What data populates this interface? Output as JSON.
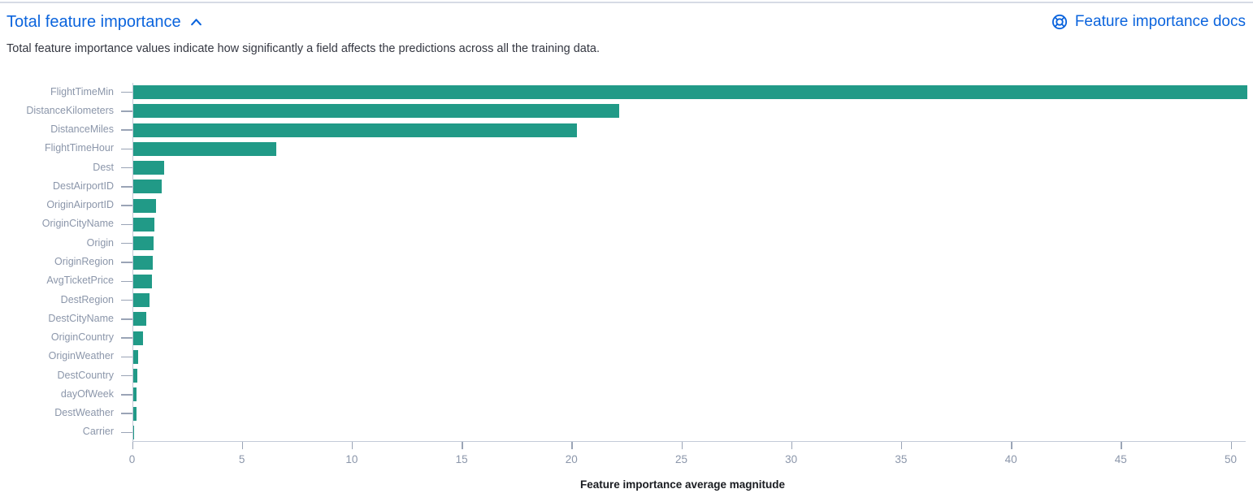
{
  "header": {
    "title": "Total feature importance",
    "collapse_icon": "chevron-up-icon",
    "docs_label": "Feature importance docs",
    "docs_icon": "help-icon"
  },
  "description": "Total feature importance values indicate how significantly a field affects the predictions across all the training data.",
  "colors": {
    "bar": "#219a87",
    "link": "#0b64dd",
    "body_text": "#343741",
    "axis_label": "#8b96aa",
    "axis_line": "#c3cad8",
    "divider": "#d6dbe5"
  },
  "chart_data": {
    "type": "bar",
    "orientation": "horizontal",
    "title": "",
    "xlabel": "Feature importance average magnitude",
    "ylabel": "",
    "categories": [
      "FlightTimeMin",
      "DistanceKilometers",
      "DistanceMiles",
      "FlightTimeHour",
      "Dest",
      "DestAirportID",
      "OriginAirportID",
      "OriginCityName",
      "Origin",
      "OriginRegion",
      "AvgTicketPrice",
      "DestRegion",
      "DestCityName",
      "OriginCountry",
      "OriginWeather",
      "DestCountry",
      "dayOfWeek",
      "DestWeather",
      "Carrier"
    ],
    "values": [
      50.7,
      22.1,
      20.2,
      6.5,
      1.4,
      1.3,
      1.05,
      0.97,
      0.94,
      0.88,
      0.86,
      0.73,
      0.6,
      0.43,
      0.21,
      0.18,
      0.16,
      0.14,
      0.04
    ],
    "xlim": [
      0,
      50
    ],
    "xticks": [
      0,
      5,
      10,
      15,
      20,
      25,
      30,
      35,
      40,
      45,
      50
    ],
    "grid": false,
    "legend": false
  }
}
